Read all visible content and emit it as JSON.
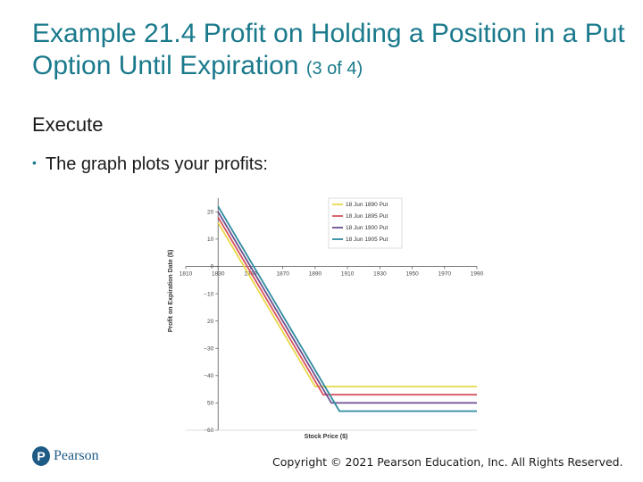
{
  "slide": {
    "title_main": "Example 21.4 Profit on Holding a Position in a Put Option Until Expiration",
    "title_suffix": "(3 of 4)",
    "heading": "Execute",
    "bullet": "The graph plots your profits:",
    "logo_letter": "P",
    "logo_text": "Pearson",
    "copyright": "Copyright © 2021 Pearson Education, Inc. All Rights Reserved."
  },
  "chart_data": {
    "type": "line",
    "xlabel": "Stock Price ($)",
    "ylabel": "Profit on Expiration Date ($)",
    "xlim": [
      1810,
      1990
    ],
    "ylim": [
      -60,
      25
    ],
    "xticks": [
      1810,
      1830,
      1850,
      1870,
      1890,
      1910,
      1930,
      1950,
      1970,
      1990
    ],
    "xtick_labels": [
      "1810",
      "1830",
      "1850",
      "1870",
      "1890",
      "1910",
      "1930",
      "1950",
      "1970",
      "1990"
    ],
    "yticks": [
      20,
      10,
      0,
      -10,
      -20,
      -30,
      -40,
      -50,
      -60
    ],
    "ytick_labels": [
      "20",
      "10",
      "0",
      "−10",
      "20",
      "−30",
      "−40",
      "50",
      "−60"
    ],
    "legend_position": "top-right",
    "grid": false,
    "series": [
      {
        "name": "18 Jun 1890 Put",
        "color": "#e8d84a",
        "x": [
          1830,
          1890,
          1990
        ],
        "y": [
          16,
          -44,
          -44
        ]
      },
      {
        "name": "18 Jun 1895 Put",
        "color": "#d9535f",
        "x": [
          1830,
          1895,
          1990
        ],
        "y": [
          18,
          -47,
          -47
        ]
      },
      {
        "name": "18 Jun 1900 Put",
        "color": "#6b4f8e",
        "x": [
          1830,
          1900,
          1990
        ],
        "y": [
          20,
          -50,
          -50
        ]
      },
      {
        "name": "18 Jun 1905 Put",
        "color": "#2e8ba0",
        "x": [
          1830,
          1905,
          1990
        ],
        "y": [
          22,
          -53,
          -53
        ]
      }
    ]
  }
}
